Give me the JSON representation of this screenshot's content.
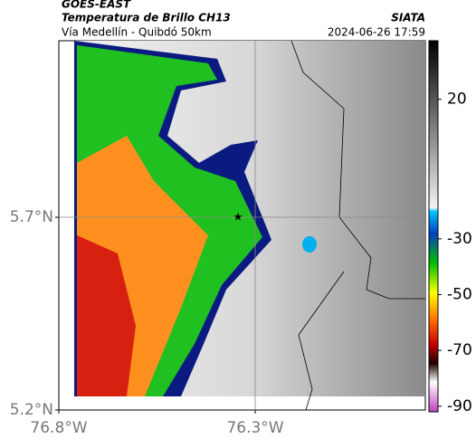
{
  "header": {
    "source": "GOES-EAST",
    "title": "Temperatura de Brillo CH13",
    "route": "Vía Medellín - Quibdó 50km",
    "org": "SIATA",
    "datetime": "2024-06-26 17:59"
  },
  "map": {
    "xlim": [
      -76.8,
      -75.867
    ],
    "ylim": [
      5.2,
      6.158
    ],
    "xticks": [
      {
        "value": -76.8,
        "label": "76.8°W"
      },
      {
        "value": -76.3,
        "label": "76.3°W"
      }
    ],
    "yticks": [
      {
        "value": 5.7,
        "label": "5.7°N"
      },
      {
        "value": 5.2,
        "label": "5.2°N"
      }
    ]
  },
  "colorbar": {
    "lim": [
      41,
      -92
    ],
    "ticks": [
      20,
      -30,
      -50,
      -70,
      -90
    ]
  }
}
